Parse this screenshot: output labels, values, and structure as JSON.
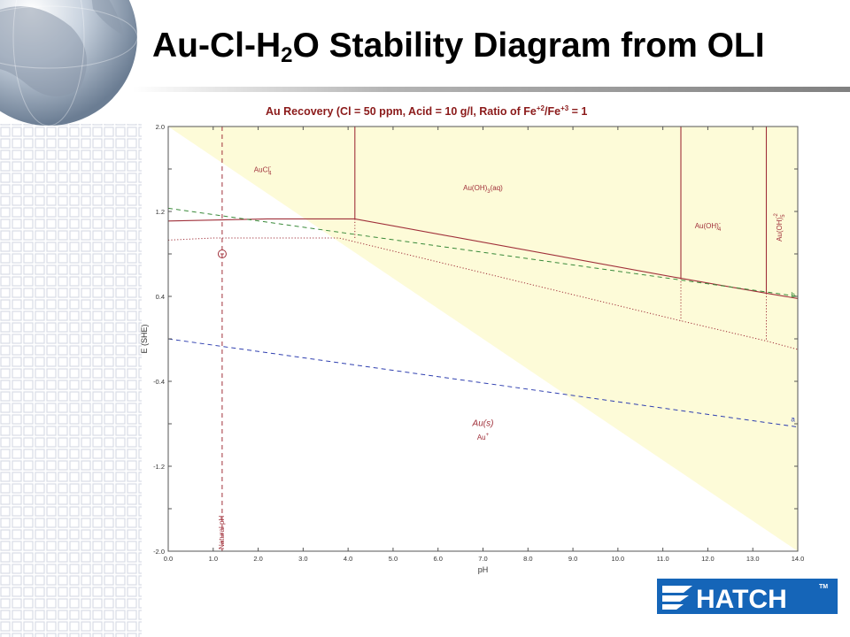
{
  "slide": {
    "title_pre": "Au-Cl-H",
    "title_sub": "2",
    "title_post": "O Stability Diagram from OLI",
    "logo_text": "HATCH",
    "logo_tm": "TM",
    "colors": {
      "brand_blue": "#1565b8",
      "pourbaix_red": "#a0303a",
      "water_green": "#3a8a3a",
      "water_blue": "#3040b0",
      "stability_fill": "#fdfbd8"
    }
  },
  "chart_data": {
    "type": "line",
    "title_parts": {
      "pre": "Au Recovery (Cl = 50 ppm, Acid = 10 g/l, Ratio of Fe",
      "sup1": "+2",
      "mid": "/Fe",
      "sup2": "+3",
      "post": " = 1"
    },
    "xlabel": "pH",
    "ylabel": "E (SHE)",
    "xlim": [
      0,
      14
    ],
    "ylim": [
      -2,
      2
    ],
    "xticks": [
      "0.0",
      "1.0",
      "2.0",
      "3.0",
      "4.0",
      "5.0",
      "6.0",
      "7.0",
      "8.0",
      "9.0",
      "10.0",
      "11.0",
      "12.0",
      "13.0",
      "14.0"
    ],
    "yticks": [
      {
        "value": 2.0,
        "label": "2.0"
      },
      {
        "value": 1.2,
        "label": "1.2"
      },
      {
        "value": 0.4,
        "label": "0.4"
      },
      {
        "value": -0.4,
        "label": "-0.4"
      },
      {
        "value": -1.2,
        "label": "-1.2"
      },
      {
        "value": -2.0,
        "label": "-2.0"
      }
    ],
    "shaded_region": [
      [
        0,
        2.0
      ],
      [
        14,
        2.0
      ],
      [
        14,
        -2.0
      ]
    ],
    "series": [
      {
        "role": "upper-boundary",
        "style": "solid",
        "color": "#a0303a",
        "points": [
          [
            0,
            1.11
          ],
          [
            2.2,
            1.13
          ],
          [
            4.15,
            1.13
          ],
          [
            11.4,
            0.57
          ],
          [
            13.3,
            0.43
          ],
          [
            14,
            0.38
          ]
        ]
      },
      {
        "role": "lower-boundary",
        "style": "dotted",
        "color": "#a0303a",
        "points": [
          [
            0,
            0.93
          ],
          [
            1.0,
            0.95
          ],
          [
            3.8,
            0.95
          ],
          [
            11.4,
            0.17
          ],
          [
            13.3,
            -0.02
          ],
          [
            14,
            -0.1
          ]
        ]
      },
      {
        "role": "vertical-boundary",
        "style": "solid",
        "color": "#a0303a",
        "points": [
          [
            4.15,
            2.0
          ],
          [
            4.15,
            1.13
          ]
        ]
      },
      {
        "role": "vertical-boundary",
        "style": "solid",
        "color": "#a0303a",
        "points": [
          [
            11.4,
            2.0
          ],
          [
            11.4,
            0.57
          ]
        ]
      },
      {
        "role": "vertical-boundary",
        "style": "solid",
        "color": "#a0303a",
        "points": [
          [
            13.3,
            2.0
          ],
          [
            13.3,
            0.43
          ]
        ]
      },
      {
        "role": "vertical-dotted",
        "style": "dotted",
        "color": "#a0303a",
        "points": [
          [
            4.15,
            1.13
          ],
          [
            4.15,
            0.95
          ]
        ]
      },
      {
        "role": "vertical-dotted",
        "style": "dotted",
        "color": "#a0303a",
        "points": [
          [
            11.4,
            0.57
          ],
          [
            11.4,
            0.17
          ]
        ]
      },
      {
        "role": "vertical-dotted",
        "style": "dotted",
        "color": "#a0303a",
        "points": [
          [
            13.3,
            0.43
          ],
          [
            13.3,
            -0.02
          ]
        ]
      },
      {
        "role": "water-line-b",
        "style": "dashed",
        "color": "#3a8a3a",
        "points": [
          [
            0,
            1.23
          ],
          [
            14,
            0.4
          ]
        ]
      },
      {
        "role": "water-line-a",
        "style": "dashed",
        "color": "#3040b0",
        "points": [
          [
            0,
            0.0
          ],
          [
            14,
            -0.83
          ]
        ]
      },
      {
        "role": "natural-ph",
        "style": "dashed",
        "color": "#a0303a",
        "points": [
          [
            1.2,
            2.0
          ],
          [
            1.2,
            -2.0
          ]
        ]
      }
    ],
    "marker": {
      "x": 1.2,
      "y": 0.8
    },
    "region_labels": [
      {
        "base": "AuCl",
        "sup": "-",
        "sub": "4",
        "x": 2.1,
        "y": 1.57
      },
      {
        "base": "Au(OH)",
        "sub": "3",
        "post": "(aq)",
        "x": 7.0,
        "y": 1.4
      },
      {
        "base": "Au(OH)",
        "sup": "-",
        "sub": "4",
        "x": 12.0,
        "y": 1.04
      },
      {
        "base": "Au(s)",
        "x": 7.0,
        "y": -0.82
      },
      {
        "base": "Au",
        "sup": "+",
        "x": 7.0,
        "y": -0.95
      }
    ],
    "rotated_label": {
      "base": "Au(OH)",
      "sub": "5",
      "sup": "-2",
      "x": 13.65,
      "y": 1.05
    },
    "natural_ph_label": "Natural pH",
    "line_labels": [
      {
        "text": "b",
        "x": 13.85,
        "y": 0.39,
        "color": "#3a8a3a"
      },
      {
        "text": "a",
        "x": 13.85,
        "y": -0.78,
        "color": "#3040b0"
      }
    ]
  }
}
